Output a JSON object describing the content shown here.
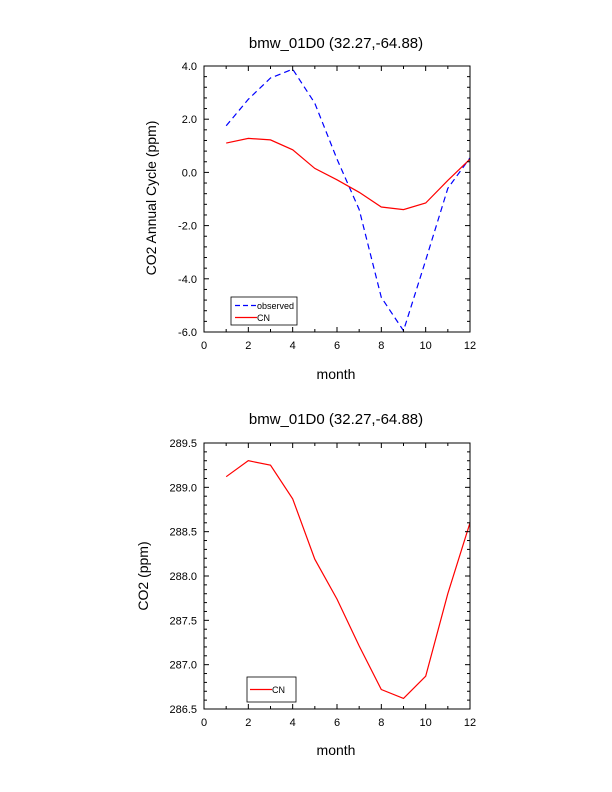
{
  "chart_data": [
    {
      "type": "line",
      "title": "bmw_01D0 (32.27,-64.88)",
      "xlabel": "month",
      "ylabel": "CO2 Annual Cycle (ppm)",
      "xlim": [
        0,
        12
      ],
      "ylim": [
        -6,
        4
      ],
      "x_ticks": [
        0,
        2,
        4,
        6,
        8,
        10,
        12
      ],
      "x_tick_labels": [
        "0",
        "2",
        "4",
        "6",
        "8",
        "10",
        "12"
      ],
      "y_ticks": [
        -6,
        -4,
        -2,
        0,
        2,
        4
      ],
      "y_tick_labels": [
        "-6.0",
        "-4.0",
        "-2.0",
        "0.0",
        "2.0",
        "4.0"
      ],
      "legend_position": "bottom-left",
      "x": [
        1,
        2,
        3,
        4,
        5,
        6,
        7,
        8,
        9,
        10,
        11,
        12
      ],
      "series": [
        {
          "name": "observed",
          "color": "#0000ff",
          "dash": "dashed",
          "values": [
            1.75,
            2.75,
            3.55,
            3.88,
            2.6,
            0.5,
            -1.4,
            -4.7,
            -5.95,
            -3.3,
            -0.6,
            0.55
          ]
        },
        {
          "name": "CN",
          "color": "#ff0000",
          "dash": "solid",
          "values": [
            1.1,
            1.28,
            1.22,
            0.85,
            0.15,
            -0.28,
            -0.75,
            -1.3,
            -1.4,
            -1.15,
            -0.3,
            0.5
          ]
        }
      ]
    },
    {
      "type": "line",
      "title": "bmw_01D0 (32.27,-64.88)",
      "xlabel": "month",
      "ylabel": "CO2 (ppm)",
      "xlim": [
        0,
        12
      ],
      "ylim": [
        286.5,
        289.5
      ],
      "x_ticks": [
        0,
        2,
        4,
        6,
        8,
        10,
        12
      ],
      "x_tick_labels": [
        "0",
        "2",
        "4",
        "6",
        "8",
        "10",
        "12"
      ],
      "y_ticks": [
        286.5,
        287.0,
        287.5,
        288.0,
        288.5,
        289.0,
        289.5
      ],
      "y_tick_labels": [
        "286.5",
        "287.0",
        "287.5",
        "288.0",
        "288.5",
        "289.0",
        "289.5"
      ],
      "legend_position": "bottom-left",
      "x": [
        1,
        2,
        3,
        4,
        5,
        6,
        7,
        8,
        9,
        10,
        11,
        12
      ],
      "series": [
        {
          "name": "CN",
          "color": "#ff0000",
          "dash": "solid",
          "values": [
            289.12,
            289.3,
            289.25,
            288.87,
            288.19,
            287.74,
            287.21,
            286.72,
            286.62,
            286.87,
            287.8,
            288.6
          ]
        }
      ]
    }
  ]
}
